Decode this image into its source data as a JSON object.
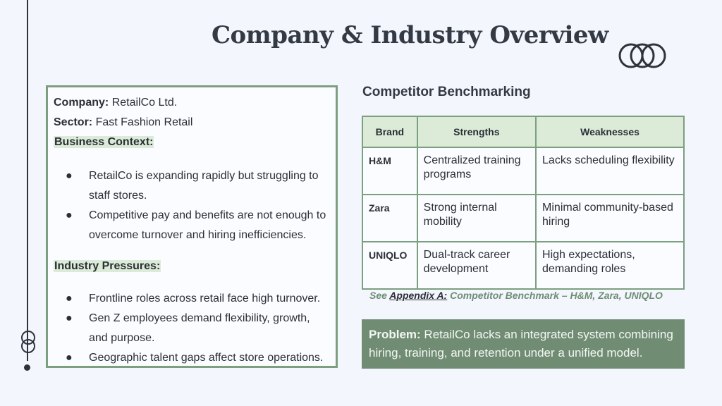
{
  "title": "Company & Industry Overview",
  "company": {
    "label": "Company:",
    "value": "RetailCo Ltd."
  },
  "sector": {
    "label": "Sector:",
    "value": "Fast Fashion Retail"
  },
  "business_context": {
    "heading": "Business Context:",
    "bullets": [
      "RetailCo is expanding rapidly but struggling to staff stores.",
      "Competitive pay and benefits are not enough to overcome turnover and hiring inefficiencies."
    ]
  },
  "industry_pressures": {
    "heading": "Industry Pressures:",
    "bullets": [
      "Frontline roles across retail face high turnover.",
      "Gen Z employees demand flexibility, growth, and purpose.",
      "Geographic talent gaps affect store operations."
    ]
  },
  "bullet_glyph": "●",
  "benchmark": {
    "title": "Competitor Benchmarking",
    "headers": [
      "Brand",
      "Strengths",
      "Weaknesses"
    ],
    "rows": [
      {
        "brand": "H&M",
        "strengths": "Centralized training programs",
        "weaknesses": "Lacks scheduling flexibility"
      },
      {
        "brand": "Zara",
        "strengths": "Strong internal mobility",
        "weaknesses": "Minimal community-based hiring"
      },
      {
        "brand": "UNIQLO",
        "strengths": "Dual-track career development",
        "weaknesses": "High expectations, demanding roles"
      }
    ]
  },
  "appendix": {
    "see": "See",
    "link": "Appendix A:",
    "text": "Competitor Benchmark – H&M, Zara, UNIQLO"
  },
  "problem": {
    "label": "Problem:",
    "text": "RetailCo lacks an integrated system combining hiring, training, and retention under a unified model."
  },
  "colors": {
    "accent_green": "#7c9f80",
    "highlight_green": "#dcebd8",
    "problem_bg": "#708d74",
    "background": "#f3f6fc"
  }
}
